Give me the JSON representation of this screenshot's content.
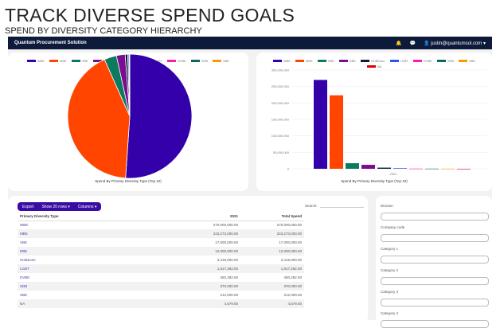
{
  "header": {
    "title": "TRACK DIVERSE SPEND GOALS",
    "subtitle": "SPEND BY DIVERSITY CATEGORY HIERARCHY"
  },
  "nav": {
    "brand": "Quantum Procurement Solution",
    "user": "justin@quantumsol.com",
    "icons": [
      "bell-icon",
      "chat-icon",
      "user-icon"
    ]
  },
  "legend": [
    {
      "label": "WBE",
      "color": "#3300aa"
    },
    {
      "label": "MBE",
      "color": "#ff4500"
    },
    {
      "label": "VBE",
      "color": "#0b7a5e"
    },
    {
      "label": "DBE",
      "color": "#7b0b8f"
    },
    {
      "label": "HUBZone",
      "color": "#0d1a3a"
    },
    {
      "label": "LGBT",
      "color": "#2f54eb"
    },
    {
      "label": "DVBE",
      "color": "#ff1aa8"
    },
    {
      "label": "SDB",
      "color": "#0a6b5c"
    },
    {
      "label": "SBE",
      "color": "#ff9900"
    },
    {
      "label": "NA",
      "color": "#e00000"
    }
  ],
  "chart_data": [
    {
      "type": "pie",
      "title": "Spend By Primary Diversity Type (Top 10)",
      "categories": [
        "WBE",
        "MBE",
        "VBE",
        "DBE",
        "HUBZone",
        "LGBT",
        "DVBE",
        "SDB",
        "SBE",
        "NA"
      ],
      "values": [
        270000000,
        223273000,
        17000000,
        12000000,
        3418000,
        1817292,
        450292,
        370000,
        212000,
        4579
      ],
      "legend": "top"
    },
    {
      "type": "bar",
      "title": "Spend By Primary Diversity Type (Top 10)",
      "categories": [
        "2021"
      ],
      "series": [
        {
          "name": "WBE",
          "values": [
            270000000
          ]
        },
        {
          "name": "MBE",
          "values": [
            223273000
          ]
        },
        {
          "name": "VBE",
          "values": [
            17000000
          ]
        },
        {
          "name": "DBE",
          "values": [
            12000000
          ]
        },
        {
          "name": "HUBZone",
          "values": [
            3418000
          ]
        },
        {
          "name": "LGBT",
          "values": [
            1817292
          ]
        },
        {
          "name": "DVBE",
          "values": [
            450292
          ]
        },
        {
          "name": "SDB",
          "values": [
            370000
          ]
        },
        {
          "name": "SBE",
          "values": [
            212000
          ]
        },
        {
          "name": "NA",
          "values": [
            4579
          ]
        }
      ],
      "ylim": [
        0,
        300000000
      ],
      "yticks": [
        "0",
        "50,000,000",
        "100,000,000",
        "150,000,000",
        "200,000,000",
        "250,000,000",
        "300,000,000"
      ],
      "grid": true,
      "legend": "top"
    }
  ],
  "table": {
    "buttons": [
      "Export",
      "Show 20 rows ▾",
      "Columns ▾"
    ],
    "search_label": "Search:",
    "columns": [
      "Primary Diversity Type",
      "2021",
      "Total Spend"
    ],
    "rows": [
      [
        "WBE",
        "270,000,000.00",
        "270,000,000.00"
      ],
      [
        "MBE",
        "223,273,000.00",
        "223,273,000.00"
      ],
      [
        "VBE",
        "17,000,000.00",
        "17,000,000.00"
      ],
      [
        "DBE",
        "12,000,000.00",
        "12,000,000.00"
      ],
      [
        "HUBZone",
        "3,418,000.00",
        "3,418,000.00"
      ],
      [
        "LGBT",
        "1,817,292.00",
        "1,817,292.00"
      ],
      [
        "DVBE",
        "450,292.00",
        "450,292.00"
      ],
      [
        "SDB",
        "370,000.00",
        "370,000.00"
      ],
      [
        "SBE",
        "212,000.00",
        "212,000.00"
      ],
      [
        "NA",
        "4,579.00",
        "4,579.00"
      ]
    ]
  },
  "filters": [
    "Division",
    "Company code",
    "Category 1",
    "Category 2",
    "Category 3",
    "Category 4"
  ]
}
